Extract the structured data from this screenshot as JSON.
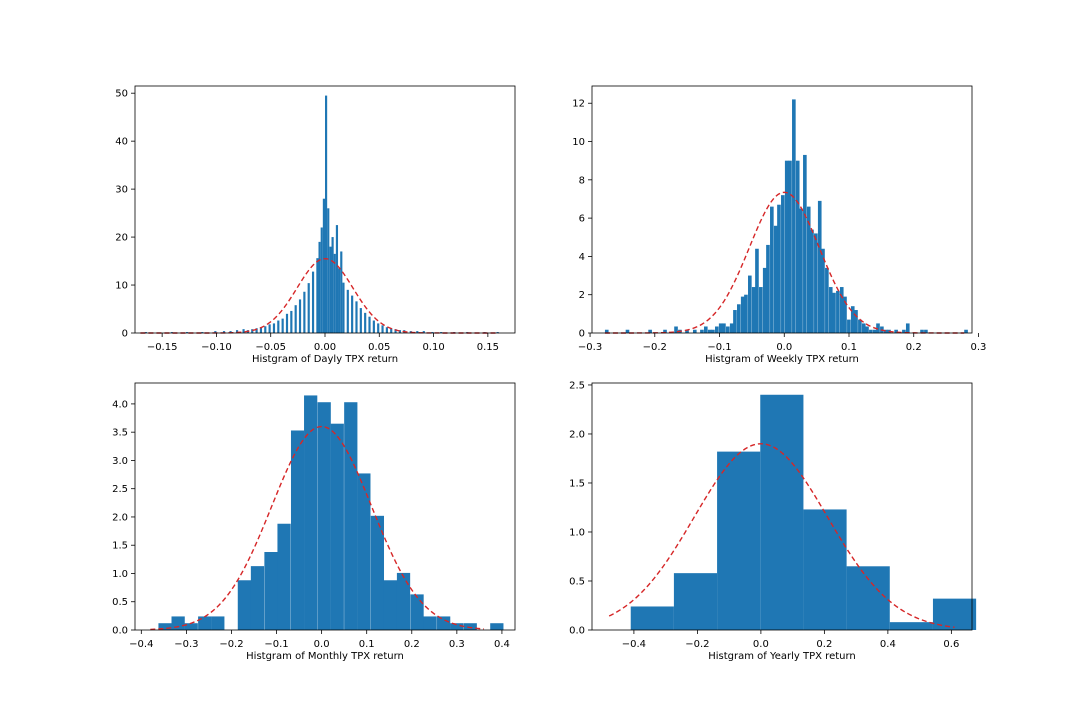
{
  "colors": {
    "bar": "#1f77b4",
    "pdf_line": "#d62728",
    "axes": "#000000"
  },
  "chart_data": [
    {
      "type": "bar",
      "xlabel": "Histgram of Dayly TPX return",
      "xlim": [
        -0.175,
        0.175
      ],
      "ylim": [
        0,
        51.5
      ],
      "xticks": [
        -0.15,
        -0.1,
        -0.05,
        0.0,
        0.05,
        0.1,
        0.15
      ],
      "xtick_labels": [
        "−0.15",
        "−0.10",
        "−0.05",
        "0.00",
        "0.05",
        "0.10",
        "0.15"
      ],
      "yticks": [
        0,
        10,
        20,
        30,
        40,
        50
      ],
      "ytick_labels": [
        "0",
        "10",
        "20",
        "30",
        "40",
        "50"
      ],
      "bin_width": 0.002,
      "bins": [
        [
          -0.166,
          0.2
        ],
        [
          -0.142,
          0.2
        ],
        [
          -0.128,
          0.2
        ],
        [
          -0.114,
          0.2
        ],
        [
          -0.102,
          0.4
        ],
        [
          -0.094,
          0.4
        ],
        [
          -0.088,
          0.4
        ],
        [
          -0.082,
          0.6
        ],
        [
          -0.076,
          0.8
        ],
        [
          -0.072,
          0.6
        ],
        [
          -0.068,
          0.8
        ],
        [
          -0.064,
          1.0
        ],
        [
          -0.06,
          1.2
        ],
        [
          -0.056,
          1.4
        ],
        [
          -0.052,
          1.8
        ],
        [
          -0.048,
          2.0
        ],
        [
          -0.044,
          2.6
        ],
        [
          -0.04,
          3.0
        ],
        [
          -0.036,
          4.0
        ],
        [
          -0.032,
          4.6
        ],
        [
          -0.028,
          5.8
        ],
        [
          -0.024,
          7.0
        ],
        [
          -0.02,
          8.6
        ],
        [
          -0.016,
          10.4
        ],
        [
          -0.012,
          12.8
        ],
        [
          -0.008,
          15.6
        ],
        [
          -0.006,
          19.0
        ],
        [
          -0.004,
          22.0
        ],
        [
          -0.002,
          28.0
        ],
        [
          0.0,
          49.5
        ],
        [
          0.002,
          26.0
        ],
        [
          0.004,
          18.0
        ],
        [
          0.006,
          20.0
        ],
        [
          0.008,
          16.5
        ],
        [
          0.01,
          22.5
        ],
        [
          0.012,
          13.5
        ],
        [
          0.014,
          17.0
        ],
        [
          0.016,
          10.5
        ],
        [
          0.02,
          9.0
        ],
        [
          0.024,
          7.8
        ],
        [
          0.028,
          6.6
        ],
        [
          0.032,
          5.2
        ],
        [
          0.036,
          4.2
        ],
        [
          0.04,
          3.4
        ],
        [
          0.044,
          2.6
        ],
        [
          0.048,
          2.0
        ],
        [
          0.052,
          1.6
        ],
        [
          0.056,
          1.2
        ],
        [
          0.06,
          1.0
        ],
        [
          0.064,
          0.8
        ],
        [
          0.068,
          0.6
        ],
        [
          0.072,
          0.6
        ],
        [
          0.078,
          0.4
        ],
        [
          0.084,
          0.4
        ],
        [
          0.09,
          0.4
        ],
        [
          0.098,
          0.2
        ],
        [
          0.106,
          0.2
        ],
        [
          0.118,
          0.2
        ],
        [
          0.13,
          0.2
        ],
        [
          0.146,
          0.2
        ],
        [
          0.158,
          0.2
        ]
      ],
      "pdf": {
        "mean": 0.0,
        "sd": 0.0257,
        "peak": 15.5,
        "x_range": [
          -0.17,
          0.16
        ]
      }
    },
    {
      "type": "bar",
      "xlabel": "Histgram of Weekly TPX return",
      "xlim": [
        -0.297,
        0.29
      ],
      "ylim": [
        0,
        12.9
      ],
      "xticks": [
        -0.3,
        -0.2,
        -0.1,
        0.0,
        0.1,
        0.2,
        0.3
      ],
      "xtick_labels": [
        "−0.3",
        "−0.2",
        "−0.1",
        "0.0",
        "0.1",
        "0.2",
        "0.3"
      ],
      "yticks": [
        0,
        2,
        4,
        6,
        8,
        10,
        12
      ],
      "ytick_labels": [
        "0",
        "2",
        "4",
        "6",
        "8",
        "10",
        "12"
      ],
      "bin_width": 0.0056,
      "bins": [
        [
          -0.277,
          0.17
        ],
        [
          -0.245,
          0.17
        ],
        [
          -0.21,
          0.17
        ],
        [
          -0.187,
          0.17
        ],
        [
          -0.17,
          0.34
        ],
        [
          -0.164,
          0.17
        ],
        [
          -0.153,
          0.17
        ],
        [
          -0.141,
          0.17
        ],
        [
          -0.13,
          0.17
        ],
        [
          -0.124,
          0.34
        ],
        [
          -0.118,
          0.17
        ],
        [
          -0.113,
          0.17
        ],
        [
          -0.107,
          0.34
        ],
        [
          -0.101,
          0.5
        ],
        [
          -0.096,
          0.5
        ],
        [
          -0.09,
          0.34
        ],
        [
          -0.084,
          0.5
        ],
        [
          -0.079,
          1.2
        ],
        [
          -0.073,
          1.5
        ],
        [
          -0.067,
          1.9
        ],
        [
          -0.062,
          2.0
        ],
        [
          -0.056,
          3.0
        ],
        [
          -0.05,
          2.4
        ],
        [
          -0.045,
          4.4
        ],
        [
          -0.039,
          2.4
        ],
        [
          -0.033,
          3.4
        ],
        [
          -0.028,
          4.6
        ],
        [
          -0.022,
          6.6
        ],
        [
          -0.016,
          5.6
        ],
        [
          -0.011,
          6.7
        ],
        [
          -0.005,
          7.2
        ],
        [
          0.001,
          9.0
        ],
        [
          0.006,
          9.0
        ],
        [
          0.012,
          12.2
        ],
        [
          0.018,
          9.0
        ],
        [
          0.023,
          6.5
        ],
        [
          0.029,
          9.3
        ],
        [
          0.035,
          6.6
        ],
        [
          0.04,
          5.4
        ],
        [
          0.046,
          5.2
        ],
        [
          0.052,
          6.9
        ],
        [
          0.057,
          4.4
        ],
        [
          0.063,
          3.4
        ],
        [
          0.069,
          2.4
        ],
        [
          0.074,
          2.1
        ],
        [
          0.08,
          2.2
        ],
        [
          0.086,
          2.4
        ],
        [
          0.091,
          1.9
        ],
        [
          0.097,
          0.7
        ],
        [
          0.103,
          1.4
        ],
        [
          0.108,
          1.2
        ],
        [
          0.114,
          0.7
        ],
        [
          0.12,
          0.5
        ],
        [
          0.125,
          0.34
        ],
        [
          0.131,
          0.17
        ],
        [
          0.137,
          0.17
        ],
        [
          0.142,
          0.5
        ],
        [
          0.148,
          0.34
        ],
        [
          0.154,
          0.17
        ],
        [
          0.159,
          0.17
        ],
        [
          0.17,
          0.17
        ],
        [
          0.182,
          0.17
        ],
        [
          0.188,
          0.5
        ],
        [
          0.21,
          0.17
        ],
        [
          0.216,
          0.17
        ],
        [
          0.278,
          0.17
        ]
      ],
      "pdf": {
        "mean": 0.0,
        "sd": 0.054,
        "peak": 7.35,
        "x_range": [
          -0.277,
          0.278
        ]
      }
    },
    {
      "type": "bar",
      "xlabel": "Histgram of Monthly TPX return",
      "xlim": [
        -0.414,
        0.429
      ],
      "ylim": [
        0,
        4.37
      ],
      "xticks": [
        -0.4,
        -0.3,
        -0.2,
        -0.1,
        0.0,
        0.1,
        0.2,
        0.3,
        0.4
      ],
      "xtick_labels": [
        "−0.4",
        "−0.3",
        "−0.2",
        "−0.1",
        "0.0",
        "0.1",
        "0.2",
        "0.3",
        "0.4"
      ],
      "yticks": [
        0,
        0.5,
        1.0,
        1.5,
        2.0,
        2.5,
        3.0,
        3.5,
        4.0
      ],
      "ytick_labels": [
        "0.0",
        "0.5",
        "1.0",
        "1.5",
        "2.0",
        "2.5",
        "3.0",
        "3.5",
        "4.0"
      ],
      "bin_width": 0.0294,
      "bins": [
        [
          -0.362,
          0.12
        ],
        [
          -0.333,
          0.24
        ],
        [
          -0.304,
          0.12
        ],
        [
          -0.274,
          0.24
        ],
        [
          -0.245,
          0.24
        ],
        [
          -0.186,
          0.88
        ],
        [
          -0.157,
          1.13
        ],
        [
          -0.127,
          1.38
        ],
        [
          -0.098,
          1.88
        ],
        [
          -0.068,
          3.53
        ],
        [
          -0.039,
          4.15
        ],
        [
          -0.009,
          4.03
        ],
        [
          0.02,
          3.65
        ],
        [
          0.05,
          4.03
        ],
        [
          0.079,
          2.77
        ],
        [
          0.109,
          2.02
        ],
        [
          0.138,
          0.88
        ],
        [
          0.167,
          1.01
        ],
        [
          0.197,
          0.63
        ],
        [
          0.226,
          0.24
        ],
        [
          0.256,
          0.24
        ],
        [
          0.285,
          0.12
        ],
        [
          0.315,
          0.12
        ],
        [
          0.374,
          0.12
        ]
      ],
      "pdf": {
        "mean": 0.0,
        "sd": 0.111,
        "peak": 3.6,
        "x_range": [
          -0.38,
          0.36
        ]
      }
    },
    {
      "type": "bar",
      "xlabel": "Histgram of Yearly TPX return",
      "xlim": [
        -0.532,
        0.665
      ],
      "ylim": [
        0,
        2.52
      ],
      "xticks": [
        -0.4,
        -0.2,
        0.0,
        0.2,
        0.4,
        0.6
      ],
      "xtick_labels": [
        "−0.4",
        "−0.2",
        "0.0",
        "0.2",
        "0.4",
        "0.6"
      ],
      "yticks": [
        0,
        0.5,
        1.0,
        1.5,
        2.0,
        2.5
      ],
      "ytick_labels": [
        "0.0",
        "0.5",
        "1.0",
        "1.5",
        "2.0",
        "2.5"
      ],
      "bin_width": 0.136,
      "bins": [
        [
          -0.41,
          0.24
        ],
        [
          -0.274,
          0.58
        ],
        [
          -0.138,
          1.82
        ],
        [
          -0.002,
          2.4
        ],
        [
          0.134,
          1.23
        ],
        [
          0.27,
          0.65
        ],
        [
          0.406,
          0.08
        ],
        [
          0.542,
          0.32
        ]
      ],
      "pdf": {
        "mean": 0.0,
        "sd": 0.21,
        "peak": 1.9,
        "x_range": [
          -0.478,
          0.61
        ]
      }
    }
  ]
}
